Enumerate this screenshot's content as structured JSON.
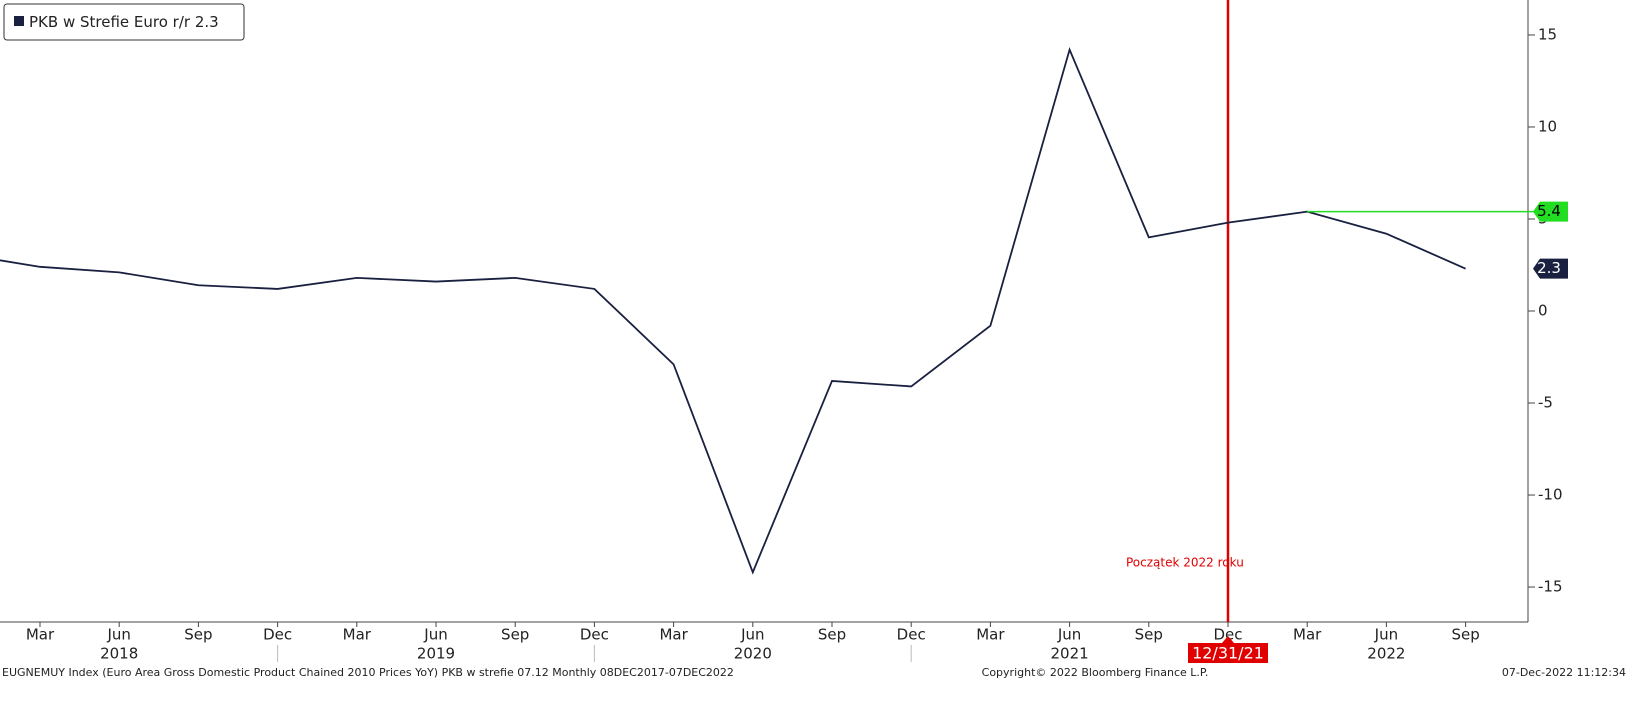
{
  "chart_data": {
    "type": "line",
    "categories": [
      null,
      "Mar",
      "Jun",
      "Sep",
      "Dec",
      "Mar",
      "Jun",
      "Sep",
      "Dec",
      "Mar",
      "Jun",
      "Sep",
      "Dec",
      "Mar",
      "Jun",
      "Sep",
      "Dec",
      "Mar",
      "Jun",
      "Sep"
    ],
    "years": [
      "2018",
      "2019",
      "2020",
      "2021",
      "2022"
    ],
    "series": [
      {
        "name": "PKB w Strefie Euro r/r",
        "color": "#1a2040",
        "values": [
          3.1,
          2.4,
          2.1,
          1.4,
          1.2,
          1.8,
          1.6,
          1.8,
          1.2,
          -2.9,
          -14.2,
          -3.8,
          -4.1,
          -0.8,
          14.2,
          4.0,
          4.8,
          5.4,
          4.2,
          2.3
        ]
      }
    ],
    "ylim": [
      -16.9,
      16.9
    ],
    "yticks": [
      -15,
      -10,
      -5,
      0,
      5,
      10,
      15
    ],
    "legend": "top-left",
    "marker_line": {
      "label": "12/31/21",
      "text": "Początek 2022 roku",
      "color": "#e00000"
    },
    "level_line_color": "#22dd22"
  },
  "footer": {
    "source": "EUGNEMUY Index (Euro Area Gross Domestic Product Chained 2010 Prices YoY) PKB w strefie 07.12  Monthly 08DEC2017-07DEC2022",
    "copyright": "Copyright© 2022 Bloomberg Finance L.P.",
    "timestamp": "07-Dec-2022 11:12:34"
  }
}
